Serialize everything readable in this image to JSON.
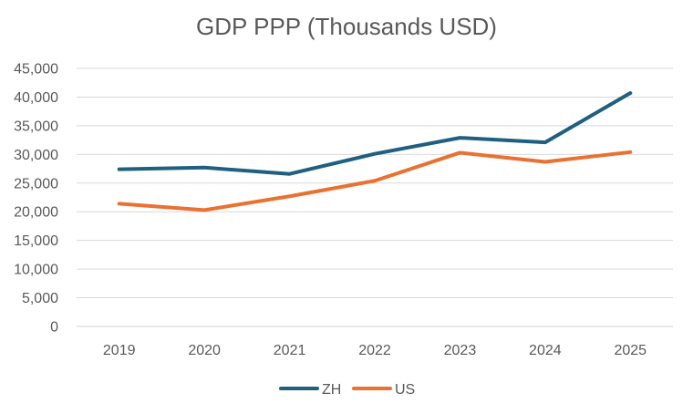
{
  "chart_data": {
    "type": "line",
    "title": "GDP PPP (Thousands USD)",
    "xlabel": "",
    "ylabel": "",
    "x": [
      "2019",
      "2020",
      "2021",
      "2022",
      "2023",
      "2024",
      "2025"
    ],
    "ylim": [
      0,
      45000
    ],
    "yticks": [
      0,
      5000,
      10000,
      15000,
      20000,
      25000,
      30000,
      35000,
      40000,
      45000
    ],
    "ytick_labels": [
      "0",
      "5,000",
      "10,000",
      "15,000",
      "20,000",
      "25,000",
      "30,000",
      "35,000",
      "40,000",
      "45,000"
    ],
    "grid": true,
    "legend": "bottom",
    "series": [
      {
        "name": "ZH",
        "color": "#1f5f7f",
        "values": [
          27400,
          27700,
          26600,
          30100,
          32900,
          32100,
          40700
        ]
      },
      {
        "name": "US",
        "color": "#e97132",
        "values": [
          21400,
          20300,
          22700,
          25400,
          30300,
          28700,
          30400
        ]
      }
    ]
  }
}
